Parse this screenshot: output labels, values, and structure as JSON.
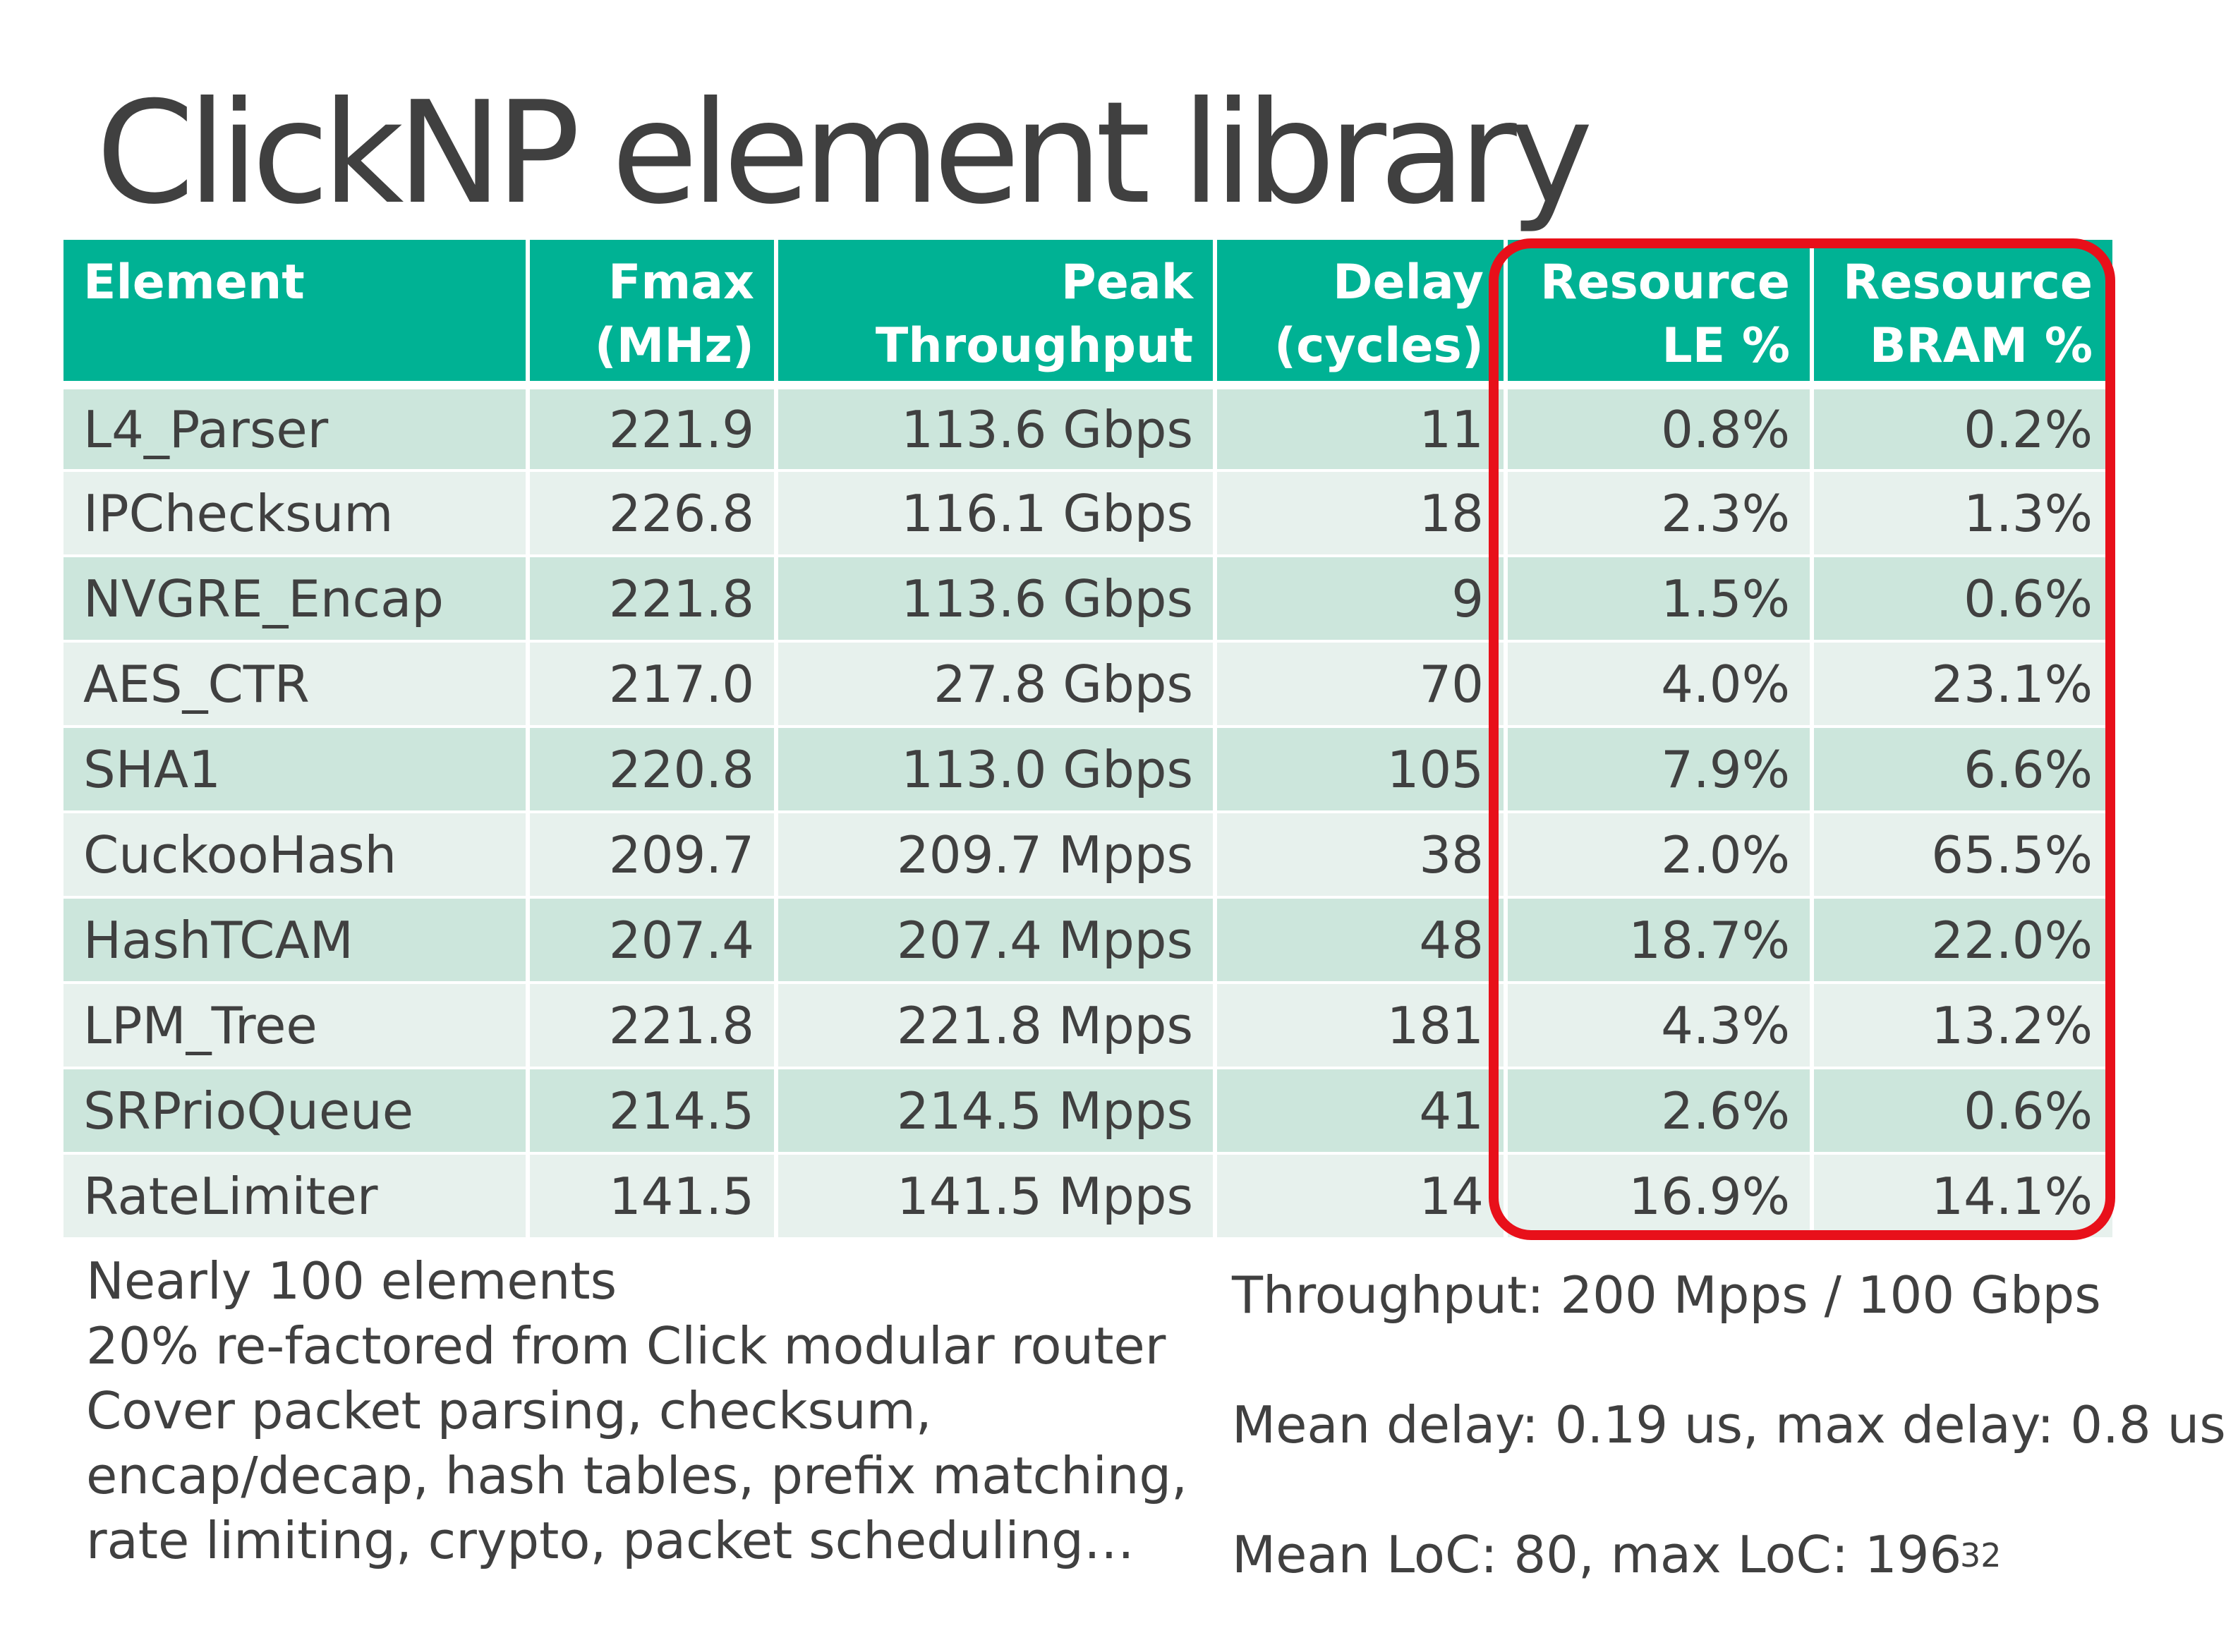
{
  "slide": {
    "title": "ClickNP element library",
    "page_number": "32"
  },
  "table": {
    "headers": [
      [
        "Element"
      ],
      [
        "Fmax",
        "(MHz)"
      ],
      [
        "Peak",
        "Throughput"
      ],
      [
        "Delay",
        "(cycles)"
      ],
      [
        "Resource",
        "LE %"
      ],
      [
        "Resource",
        "BRAM %"
      ]
    ],
    "rows": [
      [
        "L4_Parser",
        "221.9",
        "113.6 Gbps",
        "11",
        "0.8%",
        "0.2%"
      ],
      [
        "IPChecksum",
        "226.8",
        "116.1 Gbps",
        "18",
        "2.3%",
        "1.3%"
      ],
      [
        "NVGRE_Encap",
        "221.8",
        "113.6 Gbps",
        "9",
        "1.5%",
        "0.6%"
      ],
      [
        "AES_CTR",
        "217.0",
        "27.8 Gbps",
        "70",
        "4.0%",
        "23.1%"
      ],
      [
        "SHA1",
        "220.8",
        "113.0 Gbps",
        "105",
        "7.9%",
        "6.6%"
      ],
      [
        "CuckooHash",
        "209.7",
        "209.7 Mpps",
        "38",
        "2.0%",
        "65.5%"
      ],
      [
        "HashTCAM",
        "207.4",
        "207.4 Mpps",
        "48",
        "18.7%",
        "22.0%"
      ],
      [
        "LPM_Tree",
        "221.8",
        "221.8 Mpps",
        "181",
        "4.3%",
        "13.2%"
      ],
      [
        "SRPrioQueue",
        "214.5",
        "214.5 Mpps",
        "41",
        "2.6%",
        "0.6%"
      ],
      [
        "RateLimiter",
        "141.5",
        "141.5 Mpps",
        "14",
        "16.9%",
        "14.1%"
      ]
    ]
  },
  "notes_left": [
    "Nearly 100 elements",
    "20% re-factored from Click modular router",
    "Cover packet parsing, checksum,",
    "encap/decap, hash tables, prefix matching,",
    "rate limiting, crypto, packet scheduling…"
  ],
  "notes_right": [
    "Throughput: 200 Mpps / 100 Gbps",
    "Mean delay: 0.19 us, max delay: 0.8 us",
    "Mean LoC: 80, max LoC: 196"
  ],
  "colors": {
    "header_bg": "#00b294",
    "row_odd_bg": "#cce6dc",
    "row_even_bg": "#e7f1ed",
    "highlight_border": "#e8101a",
    "text": "#404040"
  }
}
